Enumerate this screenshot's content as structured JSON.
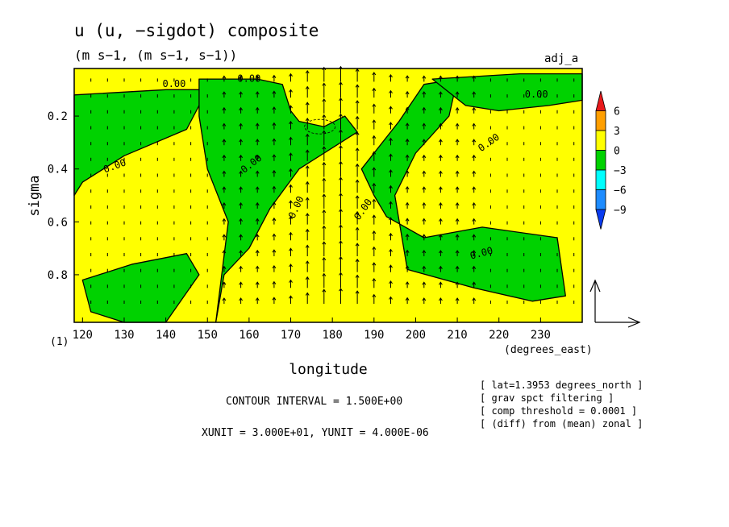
{
  "chart_data": {
    "type": "heatmap",
    "title": "u (u, −sigdot) composite",
    "subtitle": "(m s−1, (m s−1, s−1))",
    "run_label": "adj_a",
    "xlabel": "longitude",
    "xunit_label": "(degrees_east)",
    "ylabel": "sigma",
    "panel_label": "(1)",
    "xlim": [
      118,
      240
    ],
    "ylim": [
      0.02,
      0.98
    ],
    "y_inverted": true,
    "x_ticks": [
      "120",
      "130",
      "140",
      "150",
      "160",
      "170",
      "180",
      "190",
      "200",
      "210",
      "220",
      "230"
    ],
    "y_ticks": [
      "0.2",
      "0.4",
      "0.6",
      "0.8"
    ],
    "contour_label": "0.00",
    "colorbar": {
      "levels": [
        "6",
        "3",
        "0",
        "−3",
        "−6",
        "−9"
      ],
      "colors": [
        "#e8191b",
        "#ff9f00",
        "#ffff00",
        "#00d200",
        "#00ffff",
        "#1e8cff",
        "#0a3cf0"
      ]
    },
    "colors": {
      "positive": "#ffff00",
      "negative": "#00d200",
      "outline": "#000000"
    },
    "contour_interval": "CONTOUR INTERVAL = 1.500E+00",
    "units_line": "XUNIT = 3.000E+01, YUNIT = 4.000E-06",
    "notes": [
      "[ lat=1.3953 degrees_north ]",
      "[ grav spct filtering ]",
      "[ comp threshold = 0.0001 ]",
      "[ (diff) from (mean) zonal ]"
    ],
    "green_regions": [
      {
        "name": "upper-left band",
        "lon": [
          118,
          140,
          150,
          145,
          130,
          120,
          118
        ],
        "sigma": [
          0.12,
          0.1,
          0.1,
          0.25,
          0.35,
          0.45,
          0.5
        ]
      },
      {
        "name": "main west band",
        "lon": [
          148,
          162,
          168,
          170,
          172,
          178,
          183,
          186,
          172,
          165,
          160,
          154,
          152,
          155,
          150,
          148
        ],
        "sigma": [
          0.06,
          0.06,
          0.08,
          0.18,
          0.22,
          0.24,
          0.2,
          0.26,
          0.4,
          0.55,
          0.7,
          0.8,
          0.98,
          0.6,
          0.4,
          0.2
        ]
      },
      {
        "name": "main east band",
        "lon": [
          187,
          196,
          202,
          210,
          208,
          200,
          195,
          198,
          214,
          228,
          236,
          234,
          216,
          202,
          193,
          190
        ],
        "sigma": [
          0.4,
          0.22,
          0.08,
          0.06,
          0.2,
          0.34,
          0.5,
          0.78,
          0.85,
          0.9,
          0.88,
          0.66,
          0.62,
          0.66,
          0.58,
          0.5
        ]
      },
      {
        "name": "upper-right band",
        "lon": [
          204,
          225,
          240,
          240,
          232,
          220,
          212
        ],
        "sigma": [
          0.06,
          0.04,
          0.04,
          0.14,
          0.16,
          0.18,
          0.16
        ]
      },
      {
        "name": "lower-left patch",
        "lon": [
          120,
          132,
          145,
          148,
          140,
          130,
          122
        ],
        "sigma": [
          0.82,
          0.76,
          0.72,
          0.8,
          0.98,
          0.98,
          0.94
        ]
      }
    ]
  }
}
